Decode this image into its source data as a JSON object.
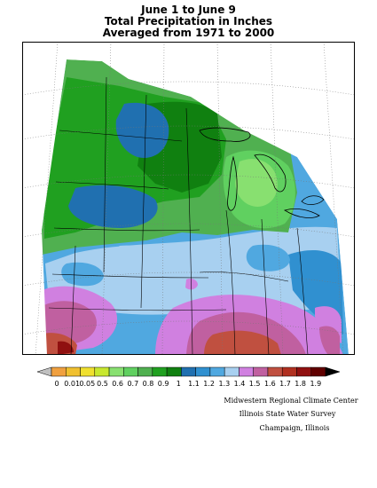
{
  "title": {
    "line1": "June 1 to June 9",
    "line2": "Total Precipitation in Inches",
    "line3": "Averaged from 1971 to 2000"
  },
  "legend": {
    "labels": [
      "0",
      "0.01",
      "0.05",
      "0.5",
      "0.6",
      "0.7",
      "0.8",
      "0.9",
      "1",
      "1.1",
      "1.2",
      "1.3",
      "1.4",
      "1.5",
      "1.6",
      "1.7",
      "1.8",
      "1.9"
    ],
    "colors": [
      "#c0c0c0",
      "#f0a040",
      "#f0c030",
      "#f0e030",
      "#c8e830",
      "#88e070",
      "#60d060",
      "#50b050",
      "#20a020",
      "#108010",
      "#2070b0",
      "#3090d0",
      "#50a8e0",
      "#a8d0f0",
      "#d080e0",
      "#c060a0",
      "#c05040",
      "#b03020",
      "#901010",
      "#600000",
      "#000000"
    ]
  },
  "credits": {
    "line1": "Midwestern Regional Climate Center",
    "line2": "Illinois State Water Survey",
    "line3": "Champaign, Illinois"
  }
}
